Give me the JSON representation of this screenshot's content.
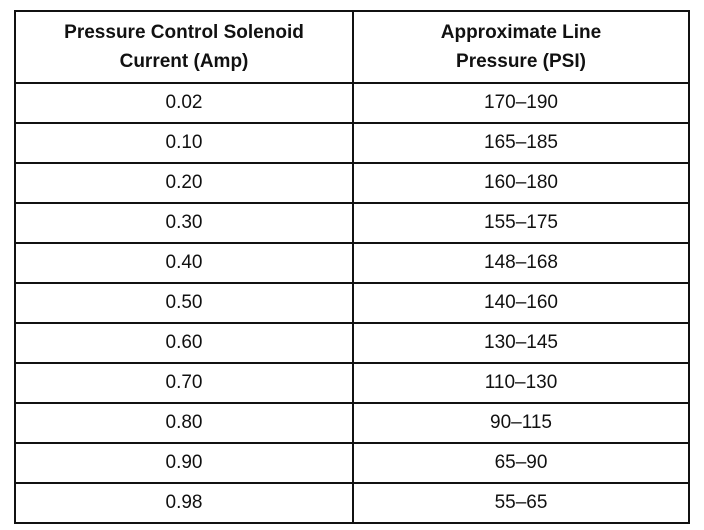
{
  "table": {
    "header": [
      [
        "Pressure Control Solenoid",
        "Current (Amp)"
      ],
      [
        "Approximate Line",
        "Pressure (PSI)"
      ]
    ],
    "rows": [
      [
        "0.02",
        "170–190"
      ],
      [
        "0.10",
        "165–185"
      ],
      [
        "0.20",
        "160–180"
      ],
      [
        "0.30",
        "155–175"
      ],
      [
        "0.40",
        "148–168"
      ],
      [
        "0.50",
        "140–160"
      ],
      [
        "0.60",
        "130–145"
      ],
      [
        "0.70",
        "110–130"
      ],
      [
        "0.80",
        "90–115"
      ],
      [
        "0.90",
        "65–90"
      ],
      [
        "0.98",
        "55–65"
      ]
    ]
  }
}
